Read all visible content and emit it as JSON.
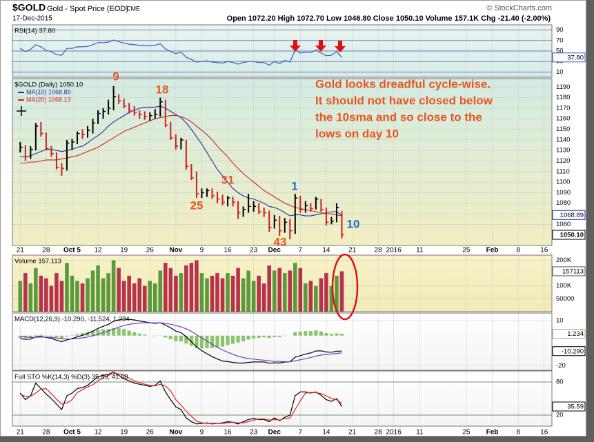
{
  "header": {
    "symbol": "$GOLD",
    "name": "Gold - Spot Price (EOD)",
    "exchange": "CME",
    "date": "17-Dec-2015",
    "quote": "Open 1072.20 High 1072.70 Low 1046.80 Close 1050.10 Volume 157.1K Chg -21.40 (-2.00%)",
    "credit": "© StockCharts.com"
  },
  "chart_data": [
    {
      "type": "line",
      "title": "RSI(14) 37.80",
      "ylim": [
        0,
        100
      ],
      "yticks": [
        10,
        30,
        50,
        70,
        90
      ],
      "grid_color": "#3b4fb8",
      "series": [
        {
          "color": "#2f5fbf",
          "last_label": "37.80",
          "values": [
            55,
            49,
            53,
            62,
            58,
            51,
            49,
            43,
            42,
            55,
            55,
            58,
            58,
            59,
            62,
            66,
            66,
            67,
            71,
            68,
            65,
            63,
            62,
            61,
            60,
            60,
            61,
            64,
            54,
            49,
            45,
            48,
            38,
            34,
            29,
            30,
            31,
            29,
            28,
            27,
            30,
            28,
            25,
            28,
            30,
            30,
            28,
            28,
            23,
            30,
            26,
            32,
            29,
            52,
            46,
            48,
            47,
            52,
            46,
            41,
            42,
            49,
            37.8
          ]
        }
      ]
    },
    {
      "type": "ohlc",
      "title": "$GOLD (Daily) 1050.10",
      "xlim": [
        -1.5,
        102.5
      ],
      "xticks": [
        {
          "value": 0,
          "label": "21"
        },
        {
          "value": 5,
          "label": "28"
        },
        {
          "value": 10,
          "label": "Oct 5"
        },
        {
          "value": 15,
          "label": "12"
        },
        {
          "value": 20,
          "label": "19"
        },
        {
          "value": 25,
          "label": "26"
        },
        {
          "value": 30,
          "label": "Nov"
        },
        {
          "value": 35,
          "label": "9"
        },
        {
          "value": 40,
          "label": "16"
        },
        {
          "value": 45,
          "label": "23"
        },
        {
          "value": 49,
          "label": "Dec"
        },
        {
          "value": 54,
          "label": "7"
        },
        {
          "value": 59,
          "label": "14"
        },
        {
          "value": 64,
          "label": "21"
        },
        {
          "value": 69,
          "label": "28"
        },
        {
          "value": 72,
          "label": "2016"
        },
        {
          "value": 77,
          "label": "11"
        },
        {
          "value": 86,
          "label": "25"
        },
        {
          "value": 91,
          "label": "Feb"
        },
        {
          "value": 96,
          "label": "8"
        },
        {
          "value": 101,
          "label": "16"
        }
      ],
      "ylim": [
        1040,
        1198
      ],
      "yticks": [
        1060,
        1070,
        1080,
        1090,
        1100,
        1110,
        1120,
        1130,
        1140,
        1150,
        1160,
        1170,
        1180,
        1190
      ],
      "grid_color": "#c9d3c6",
      "up_color": "#000000",
      "down_color": "#cc1e1e",
      "close_label": "1050.10",
      "x": [
        0,
        1,
        2,
        3,
        4,
        5,
        6,
        7,
        8,
        9,
        10,
        11,
        12,
        13,
        14,
        15,
        16,
        17,
        18,
        19,
        20,
        21,
        22,
        23,
        24,
        25,
        26,
        27,
        28,
        29,
        30,
        31,
        32,
        33,
        34,
        35,
        36,
        37,
        38,
        39,
        40,
        41,
        42,
        43,
        44,
        45,
        46,
        47,
        48,
        49,
        50,
        51,
        52,
        53,
        54,
        55,
        56,
        57,
        58,
        59,
        60,
        61,
        62
      ],
      "high": [
        1138,
        1135,
        1134,
        1156,
        1157,
        1147,
        1134,
        1128,
        1118,
        1140,
        1141,
        1148,
        1150,
        1153,
        1160,
        1168,
        1170,
        1178,
        1191,
        1183,
        1179,
        1175,
        1172,
        1168,
        1167,
        1166,
        1169,
        1180,
        1178,
        1157,
        1145,
        1142,
        1140,
        1117,
        1110,
        1094,
        1094,
        1094,
        1091,
        1088,
        1087,
        1086,
        1082,
        1077,
        1089,
        1082,
        1080,
        1076,
        1073,
        1069,
        1068,
        1066,
        1065,
        1089,
        1087,
        1082,
        1080,
        1086,
        1084,
        1076,
        1067,
        1080,
        1072.7
      ],
      "low": [
        1128,
        1120,
        1122,
        1130,
        1143,
        1130,
        1124,
        1112,
        1106,
        1111,
        1131,
        1136,
        1141,
        1142,
        1146,
        1155,
        1160,
        1164,
        1168,
        1174,
        1170,
        1165,
        1163,
        1160,
        1159,
        1158,
        1160,
        1162,
        1152,
        1140,
        1131,
        1131,
        1112,
        1102,
        1085,
        1085,
        1086,
        1084,
        1080,
        1078,
        1077,
        1077,
        1065,
        1067,
        1071,
        1072,
        1070,
        1067,
        1053,
        1056,
        1049,
        1052,
        1046,
        1051,
        1071,
        1071,
        1072,
        1074,
        1072,
        1059,
        1060,
        1062,
        1046.8
      ],
      "close": [
        1133,
        1124,
        1131,
        1153,
        1146,
        1132,
        1127,
        1114,
        1113,
        1137,
        1138,
        1146,
        1145,
        1149,
        1156,
        1165,
        1167,
        1170,
        1181,
        1177,
        1172,
        1168,
        1166,
        1164,
        1162,
        1163,
        1164,
        1176,
        1154,
        1142,
        1134,
        1140,
        1115,
        1104,
        1089,
        1090,
        1092,
        1087,
        1084,
        1081,
        1085,
        1081,
        1071,
        1074,
        1077,
        1077,
        1072,
        1071,
        1057,
        1064,
        1054,
        1062,
        1054,
        1085,
        1074,
        1078,
        1075,
        1084,
        1074,
        1062,
        1063,
        1076,
        1050.1
      ],
      "overlays": [
        {
          "name": "MA(10) 1068.89",
          "color": "#1c2fa8",
          "last_label": "1068.89",
          "values": [
            1124,
            1124,
            1125,
            1127,
            1129,
            1131,
            1131,
            1130,
            1129,
            1130,
            1131,
            1133,
            1134,
            1137,
            1141,
            1144,
            1148,
            1153,
            1157,
            1160,
            1163,
            1166,
            1168,
            1170,
            1171,
            1171,
            1171,
            1172,
            1170,
            1167,
            1164,
            1161,
            1156,
            1150,
            1143,
            1136,
            1128,
            1120,
            1112,
            1106,
            1100,
            1094,
            1090,
            1087,
            1085,
            1084,
            1082,
            1080,
            1077,
            1076,
            1074,
            1071,
            1068,
            1069,
            1069,
            1068,
            1068,
            1069,
            1070,
            1071,
            1072,
            1072,
            1068.89
          ]
        },
        {
          "name": "MA(20) 1068.13",
          "color": "#d42020",
          "values": [
            1118,
            1118,
            1119,
            1119,
            1120,
            1121,
            1121,
            1121,
            1122,
            1123,
            1124,
            1125,
            1127,
            1129,
            1131,
            1133,
            1136,
            1139,
            1142,
            1145,
            1148,
            1150,
            1152,
            1154,
            1156,
            1158,
            1160,
            1161,
            1162,
            1163,
            1163,
            1162,
            1160,
            1157,
            1153,
            1149,
            1145,
            1140,
            1134,
            1129,
            1124,
            1118,
            1113,
            1108,
            1104,
            1100,
            1096,
            1092,
            1089,
            1086,
            1083,
            1080,
            1078,
            1076,
            1075,
            1074,
            1073,
            1072,
            1071,
            1070,
            1070,
            1069,
            1068.13
          ]
        }
      ],
      "annotations": [
        {
          "text": "9",
          "color": "#e8561e"
        },
        {
          "text": "18",
          "color": "#e8561e"
        },
        {
          "text": "25",
          "color": "#e8561e"
        },
        {
          "text": "31",
          "color": "#e8561e"
        },
        {
          "text": "1",
          "color": "#1f6fc9"
        },
        {
          "text": "43",
          "color": "#e8561e"
        },
        {
          "text": "10",
          "color": "#1f6fc9"
        }
      ],
      "note": {
        "color": "#e8561e",
        "lines": [
          "Gold looks dreadful cycle-wise.",
          "It should not have closed below",
          "the 10sma and so close to the",
          "lows on day 10"
        ]
      }
    },
    {
      "type": "bar",
      "title": "Volume 157,113",
      "ylim": [
        0,
        220000
      ],
      "yticks": [
        50000,
        {
          "value": 100000,
          "label": "100K"
        },
        {
          "value": 200000,
          "label": "200K"
        }
      ],
      "grid_color": "#d8d2a8",
      "up_color": "#5a9a3c",
      "down_color": "#b8324e",
      "last_label": "157113",
      "values": [
        120000,
        150000,
        110000,
        170000,
        140000,
        130000,
        100000,
        150000,
        120000,
        190000,
        140000,
        120000,
        110000,
        130000,
        160000,
        180000,
        130000,
        150000,
        200000,
        170000,
        120000,
        140000,
        110000,
        130000,
        100000,
        120000,
        110000,
        160000,
        190000,
        170000,
        140000,
        150000,
        180000,
        190000,
        200000,
        150000,
        130000,
        140000,
        150000,
        130000,
        150000,
        140000,
        170000,
        130000,
        160000,
        120000,
        140000,
        110000,
        180000,
        160000,
        170000,
        150000,
        160000,
        190000,
        170000,
        110000,
        120000,
        100000,
        130000,
        150000,
        100000,
        140000,
        157113
      ]
    },
    {
      "type": "macd",
      "title": "MACD(12,26,9) -10.290, -11.524, 1.234",
      "ylim": [
        -23,
        15
      ],
      "yticks": [
        -20,
        10
      ],
      "grid_color": "#d6d6d6",
      "histogram": {
        "color": "#8cc46e",
        "last_label": "1.234",
        "values": [
          -1.5,
          -1.6,
          -1.1,
          0.3,
          0.5,
          -0.2,
          -0.6,
          -1.4,
          -1.9,
          -0.6,
          0.2,
          1.1,
          1.7,
          2.4,
          3.1,
          3.9,
          4.2,
          4.4,
          5.1,
          4.9,
          4.3,
          3.3,
          2.3,
          1.4,
          0.6,
          0,
          -0.3,
          0.1,
          -1.2,
          -2.4,
          -3.7,
          -3.8,
          -5.3,
          -6.8,
          -8.2,
          -8.5,
          -8.4,
          -8.3,
          -7.8,
          -7.3,
          -6.2,
          -5.4,
          -4.6,
          -3.7,
          -2.6,
          -1.8,
          -1.5,
          -1.1,
          -1.6,
          -1,
          -1,
          -0.2,
          0,
          2.4,
          2.7,
          3.1,
          3,
          3.4,
          2.8,
          1.7,
          1.2,
          1.5,
          1.234
        ]
      },
      "series": [
        {
          "color": "#000000",
          "last_label": "-10.290",
          "values": [
            -2,
            -2.5,
            -2.3,
            -0.8,
            -0.5,
            -1.2,
            -1.8,
            -3,
            -4,
            -2.8,
            -2,
            -0.8,
            0.2,
            1.5,
            3,
            4.8,
            6.2,
            7.5,
            9.5,
            10.5,
            11,
            10.8,
            10.4,
            9.8,
            9.2,
            8.6,
            8.2,
            8.6,
            7,
            5.2,
            3,
            2,
            -0.8,
            -4,
            -7.5,
            -10,
            -12,
            -14,
            -15.5,
            -16.8,
            -17.2,
            -17.8,
            -18.2,
            -18.2,
            -17.8,
            -17.4,
            -17.5,
            -17.4,
            -18.3,
            -18,
            -18.2,
            -17.5,
            -17.3,
            -14.3,
            -13.3,
            -12.2,
            -11.5,
            -10.2,
            -10.1,
            -10.8,
            -11,
            -10.3,
            -10.29
          ]
        },
        {
          "color": "#6a3fc8",
          "values": [
            -0.5,
            -0.9,
            -1.2,
            -1.1,
            -1,
            -1,
            -1.2,
            -1.6,
            -2.1,
            -2.2,
            -2.2,
            -1.9,
            -1.5,
            -0.9,
            -0.1,
            0.9,
            2,
            3.1,
            4.4,
            5.6,
            6.7,
            7.5,
            8.1,
            8.4,
            8.6,
            8.6,
            8.5,
            8.5,
            8.2,
            7.6,
            6.7,
            5.8,
            4.5,
            2.8,
            0.7,
            -1.5,
            -3.6,
            -5.7,
            -7.7,
            -9.5,
            -11,
            -12.4,
            -13.6,
            -14.5,
            -15.2,
            -15.6,
            -16,
            -16.3,
            -16.7,
            -17,
            -17.2,
            -17.3,
            -17.3,
            -16.7,
            -16,
            -15.3,
            -14.5,
            -13.6,
            -12.9,
            -12.5,
            -12.2,
            -11.8,
            -11.524
          ]
        }
      ]
    },
    {
      "type": "line",
      "title": "Full STO %K(14,3) %D(3) 35.59, 41.08",
      "ylim": [
        0,
        100
      ],
      "yticks": [
        20,
        80
      ],
      "grid_color": "#4a6a4a",
      "xlim": [
        -1.5,
        102.5
      ],
      "xticks": [
        {
          "value": 0,
          "label": "21"
        },
        {
          "value": 5,
          "label": "28"
        },
        {
          "value": 10,
          "label": "Oct 5"
        },
        {
          "value": 15,
          "label": "12"
        },
        {
          "value": 20,
          "label": "19"
        },
        {
          "value": 25,
          "label": "26"
        },
        {
          "value": 30,
          "label": "Nov"
        },
        {
          "value": 35,
          "label": "9"
        },
        {
          "value": 40,
          "label": "16"
        },
        {
          "value": 45,
          "label": "23"
        },
        {
          "value": 49,
          "label": "Dec"
        },
        {
          "value": 54,
          "label": "7"
        },
        {
          "value": 59,
          "label": "14"
        },
        {
          "value": 64,
          "label": "21"
        },
        {
          "value": 69,
          "label": "28"
        },
        {
          "value": 72,
          "label": "2016"
        },
        {
          "value": 77,
          "label": "11"
        },
        {
          "value": 86,
          "label": "25"
        },
        {
          "value": 91,
          "label": "Feb"
        },
        {
          "value": 96,
          "label": "8"
        },
        {
          "value": 101,
          "label": "16"
        }
      ],
      "series": [
        {
          "color": "#000000",
          "last_label": "35.59",
          "values": [
            60,
            48,
            55,
            78,
            68,
            58,
            50,
            40,
            30,
            55,
            60,
            68,
            70,
            74,
            82,
            90,
            92,
            94,
            98,
            92,
            86,
            82,
            78,
            76,
            74,
            72,
            74,
            82,
            62,
            48,
            35,
            30,
            15,
            8,
            4,
            5,
            6,
            4,
            5,
            6,
            8,
            7,
            4,
            8,
            12,
            14,
            12,
            12,
            8,
            15,
            10,
            16,
            20,
            55,
            62,
            62,
            60,
            62,
            56,
            48,
            45,
            50,
            35.59
          ]
        },
        {
          "color": "#e02020",
          "values": [
            58,
            54,
            54,
            60,
            67,
            68,
            59,
            49,
            40,
            42,
            48,
            61,
            66,
            71,
            75,
            82,
            88,
            92,
            95,
            95,
            92,
            87,
            82,
            79,
            76,
            74,
            73,
            76,
            73,
            64,
            48,
            38,
            27,
            18,
            9,
            6,
            5,
            5,
            5,
            5,
            6,
            7,
            6,
            6,
            8,
            11,
            13,
            13,
            11,
            12,
            11,
            14,
            15,
            30,
            46,
            60,
            61,
            61,
            59,
            55,
            50,
            48,
            41.08
          ]
        }
      ]
    }
  ]
}
